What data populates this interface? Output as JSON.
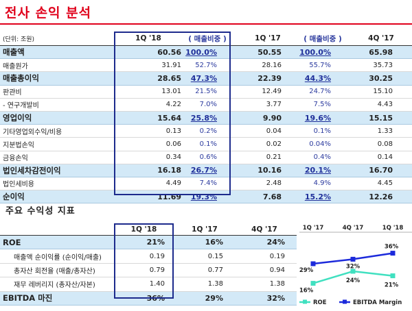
{
  "page": {
    "title": "전사 손익 분석"
  },
  "income": {
    "unit": "(단위: 조원)",
    "columns": [
      "1Q '18",
      "( 매출비중 )",
      "1Q '17",
      "( 매출비중 )",
      "4Q '17"
    ],
    "rows": [
      {
        "label": "매출액",
        "v1": "60.56",
        "p1": "100.0%",
        "v2": "50.55",
        "p2": "100.0%",
        "v3": "65.98",
        "hl": true
      },
      {
        "label": "매출원가",
        "v1": "31.91",
        "p1": "52.7%",
        "v2": "28.16",
        "p2": "55.7%",
        "v3": "35.73",
        "hl": false
      },
      {
        "label": "매출총이익",
        "v1": "28.65",
        "p1": "47.3%",
        "v2": "22.39",
        "p2": "44.3%",
        "v3": "30.25",
        "hl": true
      },
      {
        "label": "판관비",
        "v1": "13.01",
        "p1": "21.5%",
        "v2": "12.49",
        "p2": "24.7%",
        "v3": "15.10",
        "hl": false
      },
      {
        "label": "- 연구개발비",
        "v1": "4.22",
        "p1": "7.0%",
        "v2": "3.77",
        "p2": "7.5%",
        "v3": "4.43",
        "hl": false
      },
      {
        "label": "영업이익",
        "v1": "15.64",
        "p1": "25.8%",
        "v2": "9.90",
        "p2": "19.6%",
        "v3": "15.15",
        "hl": true
      },
      {
        "label": "기타영업외수익/비용",
        "v1": "0.13",
        "p1": "0.2%",
        "v2": "0.04",
        "p2": "0.1%",
        "v3": "1.33",
        "hl": false
      },
      {
        "label": "지분법손익",
        "v1": "0.06",
        "p1": "0.1%",
        "v2": "0.02",
        "p2": "0.04%",
        "v3": "0.08",
        "hl": false
      },
      {
        "label": "금융손익",
        "v1": "0.34",
        "p1": "0.6%",
        "v2": "0.21",
        "p2": "0.4%",
        "v3": "0.14",
        "hl": false
      },
      {
        "label": "법인세차감전이익",
        "v1": "16.18",
        "p1": "26.7%",
        "v2": "10.16",
        "p2": "20.1%",
        "v3": "16.70",
        "hl": true
      },
      {
        "label": "법인세비용",
        "v1": "4.49",
        "p1": "7.4%",
        "v2": "2.48",
        "p2": "4.9%",
        "v3": "4.45",
        "hl": false
      },
      {
        "label": "순이익",
        "v1": "11.69",
        "p1": "19.3%",
        "v2": "7.68",
        "p2": "15.2%",
        "v3": "12.26",
        "hl": true
      }
    ]
  },
  "profitability": {
    "title": "주요 수익성 지표",
    "columns": [
      "1Q '18",
      "1Q '17",
      "4Q '17"
    ],
    "rows": [
      {
        "label": "ROE",
        "v1": "21%",
        "v2": "16%",
        "v3": "24%",
        "hl": true
      },
      {
        "label": "매출액 순이익률 (순이익/매출)",
        "v1": "0.19",
        "v2": "0.15",
        "v3": "0.19",
        "hl": false
      },
      {
        "label": "총자산 회전율 (매출/총자산)",
        "v1": "0.79",
        "v2": "0.77",
        "v3": "0.94",
        "hl": false
      },
      {
        "label": "재무 레버리지 (총자산/자본)",
        "v1": "1.40",
        "v2": "1.38",
        "v3": "1.38",
        "hl": false
      },
      {
        "label": "EBITDA 마진",
        "v1": "36%",
        "v2": "29%",
        "v3": "32%",
        "hl": true
      }
    ]
  },
  "chart_data": {
    "type": "line",
    "categories": [
      "1Q '17",
      "4Q '17",
      "1Q '18"
    ],
    "series": [
      {
        "name": "ROE",
        "values": [
          16,
          24,
          21
        ],
        "labels": [
          "16%",
          "24%",
          "21%"
        ],
        "color": "#40e0c0"
      },
      {
        "name": "EBITDA Margin",
        "values": [
          29,
          32,
          36
        ],
        "labels": [
          "29%",
          "32%",
          "36%"
        ],
        "color": "#1c2adb"
      }
    ],
    "legend": "bottom"
  }
}
